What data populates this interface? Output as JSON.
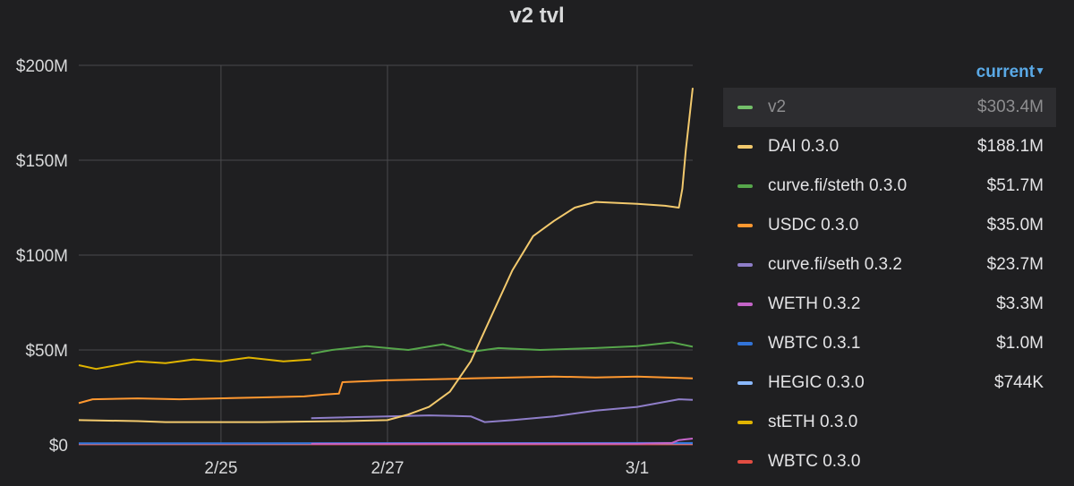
{
  "panel": {
    "title": "v2 tvl"
  },
  "legend": {
    "sort_label": "current"
  },
  "chart_data": {
    "type": "line",
    "title": "v2 tvl",
    "x_ticks": [
      "2/25",
      "2/27",
      "3/1"
    ],
    "y_ticks": [
      "$0",
      "$50M",
      "$100M",
      "$150M",
      "$200M"
    ],
    "x_range": [
      "2/23 19:00",
      "3/2 04:00"
    ],
    "y_range": [
      0,
      200
    ],
    "y_unit": "$M",
    "grid": true,
    "legend_position": "right",
    "series": [
      {
        "name": "v2",
        "color": "#73bf69",
        "current": "$303.4M",
        "hidden": true,
        "points": []
      },
      {
        "name": "DAI 0.3.0",
        "color": "#f2c96d",
        "current": "$188.1M",
        "points": [
          [
            "2/23 19:00",
            13
          ],
          [
            "2/24 12:00",
            12.5
          ],
          [
            "2/24 20:00",
            12
          ],
          [
            "2/26 00:00",
            12
          ],
          [
            "2/27 00:00",
            12.5
          ],
          [
            "2/27 12:00",
            13
          ],
          [
            "2/27 18:00",
            16
          ],
          [
            "2/28 00:00",
            20
          ],
          [
            "2/28 06:00",
            28
          ],
          [
            "2/28 12:00",
            44
          ],
          [
            "2/28 18:00",
            68
          ],
          [
            "2/29 00:00",
            92
          ],
          [
            "2/29 06:00",
            110
          ],
          [
            "2/29 12:00",
            118
          ],
          [
            "2/29 18:00",
            125
          ],
          [
            "3/1 00:00",
            128
          ],
          [
            "3/1 12:00",
            127
          ],
          [
            "3/1 20:00",
            126
          ],
          [
            "3/2 00:00",
            125
          ],
          [
            "3/2 01:00",
            135
          ],
          [
            "3/2 02:00",
            155
          ],
          [
            "3/2 04:00",
            188.1
          ]
        ]
      },
      {
        "name": "curve.fi/steth 0.3.0",
        "color": "#56a64b",
        "current": "$51.7M",
        "points": [
          [
            "2/26 14:00",
            48
          ],
          [
            "2/26 20:00",
            50
          ],
          [
            "2/27 06:00",
            52
          ],
          [
            "2/27 18:00",
            50
          ],
          [
            "2/28 04:00",
            53
          ],
          [
            "2/28 12:00",
            49
          ],
          [
            "2/28 20:00",
            51
          ],
          [
            "2/29 08:00",
            50
          ],
          [
            "3/1 00:00",
            51
          ],
          [
            "3/1 12:00",
            52
          ],
          [
            "3/1 22:00",
            54
          ],
          [
            "3/2 04:00",
            51.7
          ]
        ]
      },
      {
        "name": "USDC 0.3.0",
        "color": "#ff9830",
        "current": "$35.0M",
        "points": [
          [
            "2/23 19:00",
            22
          ],
          [
            "2/23 23:00",
            24
          ],
          [
            "2/24 12:00",
            24.5
          ],
          [
            "2/25 00:00",
            24
          ],
          [
            "2/26 00:00",
            25
          ],
          [
            "2/26 12:00",
            25.5
          ],
          [
            "2/26 18:00",
            26.5
          ],
          [
            "2/26 22:00",
            27
          ],
          [
            "2/26 23:00",
            33
          ],
          [
            "2/27 12:00",
            34
          ],
          [
            "2/28 00:00",
            34.5
          ],
          [
            "2/28 12:00",
            35
          ],
          [
            "2/29 00:00",
            35.5
          ],
          [
            "2/29 12:00",
            36
          ],
          [
            "3/1 00:00",
            35.5
          ],
          [
            "3/1 12:00",
            36
          ],
          [
            "3/2 04:00",
            35.0
          ]
        ]
      },
      {
        "name": "curve.fi/seth 0.3.2",
        "color": "#8f7ec9",
        "current": "$23.7M",
        "points": [
          [
            "2/26 14:00",
            14
          ],
          [
            "2/27 00:00",
            14.5
          ],
          [
            "2/27 12:00",
            15
          ],
          [
            "2/28 00:00",
            15.5
          ],
          [
            "2/28 12:00",
            15
          ],
          [
            "2/28 16:00",
            12
          ],
          [
            "2/29 00:00",
            13
          ],
          [
            "2/29 12:00",
            15
          ],
          [
            "3/1 00:00",
            18
          ],
          [
            "3/1 12:00",
            20
          ],
          [
            "3/1 18:00",
            22
          ],
          [
            "3/2 00:00",
            24
          ],
          [
            "3/2 04:00",
            23.7
          ]
        ]
      },
      {
        "name": "WETH 0.3.2",
        "color": "#c464c8",
        "current": "$3.3M",
        "points": [
          [
            "2/26 14:00",
            0.5
          ],
          [
            "3/1 12:00",
            0.6
          ],
          [
            "3/1 22:00",
            1
          ],
          [
            "3/2 00:00",
            2.5
          ],
          [
            "3/2 04:00",
            3.3
          ]
        ]
      },
      {
        "name": "WBTC 0.3.1",
        "color": "#3274d9",
        "current": "$1.0M",
        "points": [
          [
            "2/23 19:00",
            0.8
          ],
          [
            "3/2 04:00",
            1.0
          ]
        ]
      },
      {
        "name": "HEGIC 0.3.0",
        "color": "#8ab8ff",
        "current": "$744K",
        "points": [
          [
            "2/23 19:00",
            0.7
          ],
          [
            "3/2 04:00",
            0.744
          ]
        ]
      },
      {
        "name": "stETH 0.3.0",
        "color": "#e0b400",
        "current": "",
        "points": [
          [
            "2/23 19:00",
            42
          ],
          [
            "2/24 00:00",
            40
          ],
          [
            "2/24 06:00",
            42
          ],
          [
            "2/24 12:00",
            44
          ],
          [
            "2/24 20:00",
            43
          ],
          [
            "2/25 04:00",
            45
          ],
          [
            "2/25 12:00",
            44
          ],
          [
            "2/25 20:00",
            46
          ],
          [
            "2/26 06:00",
            44
          ],
          [
            "2/26 14:00",
            45
          ]
        ]
      },
      {
        "name": "WBTC 0.3.0",
        "color": "#e24d42",
        "current": "",
        "points": [
          [
            "2/23 19:00",
            0.3
          ],
          [
            "3/2 04:00",
            0.3
          ]
        ]
      }
    ]
  }
}
